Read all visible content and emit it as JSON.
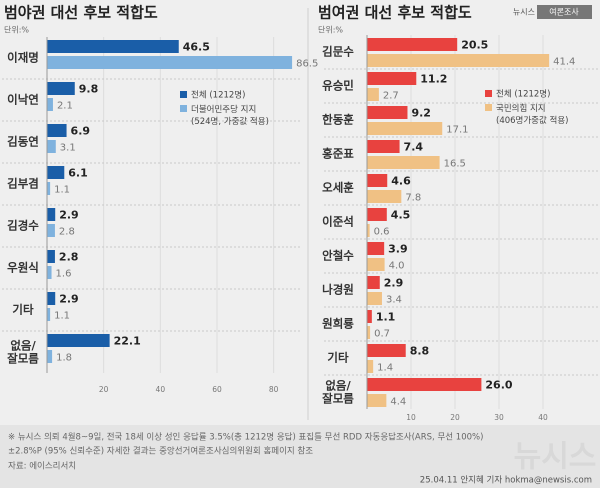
{
  "header": {
    "logo": [
      "뉴시스",
      "여론조사"
    ]
  },
  "chart_data": [
    {
      "type": "bar",
      "orientation": "horizontal",
      "title": "범야권 대선 후보 적합도",
      "unit": "단위:%",
      "categories": [
        "이재명",
        "이낙연",
        "김동연",
        "김부겸",
        "김경수",
        "우원식",
        "기타",
        "없음/\n잘모름"
      ],
      "series": [
        {
          "name": "전체 (1212명)",
          "color": "#1a5ea8",
          "values": [
            46.5,
            9.8,
            6.9,
            6.1,
            2.9,
            2.8,
            2.9,
            22.1
          ],
          "value_labels": [
            "46.5",
            "9.8",
            "6.9",
            "6.1",
            "2.9",
            "2.8",
            "2.9",
            "22.1"
          ]
        },
        {
          "name": "더불어민주당 지지\n(524명, 가중값 적용)",
          "color": "#7fb2de",
          "values": [
            86.5,
            2.1,
            3.1,
            1.1,
            2.8,
            1.6,
            1.1,
            1.8
          ],
          "value_labels": [
            "86.5",
            "2.1",
            "3.1",
            "1.1",
            "2.8",
            "1.6",
            "1.1",
            "1.8"
          ]
        }
      ],
      "xlim": [
        0,
        90
      ],
      "xticks": [
        20,
        40,
        60,
        80
      ],
      "grid": true
    },
    {
      "type": "bar",
      "orientation": "horizontal",
      "title": "범여권 대선 후보 적합도",
      "unit": "단위:%",
      "categories": [
        "김문수",
        "유승민",
        "한동훈",
        "홍준표",
        "오세훈",
        "이준석",
        "안철수",
        "나경원",
        "원희룡",
        "기타",
        "없음/\n잘모름"
      ],
      "series": [
        {
          "name": "전체 (1212명)",
          "color": "#e8423f",
          "values": [
            20.5,
            11.2,
            9.2,
            7.4,
            4.6,
            4.5,
            3.9,
            2.9,
            1.1,
            8.8,
            26.0
          ],
          "value_labels": [
            "20.5",
            "11.2",
            "9.2",
            "7.4",
            "4.6",
            "4.5",
            "3.9",
            "2.9",
            "1.1",
            "8.8",
            "26.0"
          ]
        },
        {
          "name": "국민의힘 지지\n(406명가중값 적용)",
          "color": "#f0c184",
          "values": [
            41.4,
            2.7,
            17.1,
            16.5,
            7.8,
            0.6,
            4.0,
            3.4,
            0.7,
            1.4,
            4.4
          ],
          "value_labels": [
            "41.4",
            "2.7",
            "17.1",
            "16.5",
            "7.8",
            "0.6",
            "4.0",
            "3.4",
            "0.7",
            "1.4",
            "4.4"
          ]
        }
      ],
      "xlim": [
        0,
        45
      ],
      "xticks": [
        10,
        20,
        30,
        40
      ],
      "grid": true
    }
  ],
  "footer": {
    "note": [
      "※ 뉴시스 의뢰 4월8~9일, 전국 18세 이상 성인 응답률 3.5%(총 1212명 응답) 표집틀 무선 RDD 자동응답조사(ARS, 무선 100%)",
      "±2.8%P (95% 신뢰수준) 자세한 결과는 중앙선거여론조사심의위원회 홈페이지 참조"
    ],
    "source": "자료: 에이스리서치",
    "credit": "25.04.11 안지혜 기자 hokma@newsis.com",
    "watermark": "뉴시스"
  }
}
